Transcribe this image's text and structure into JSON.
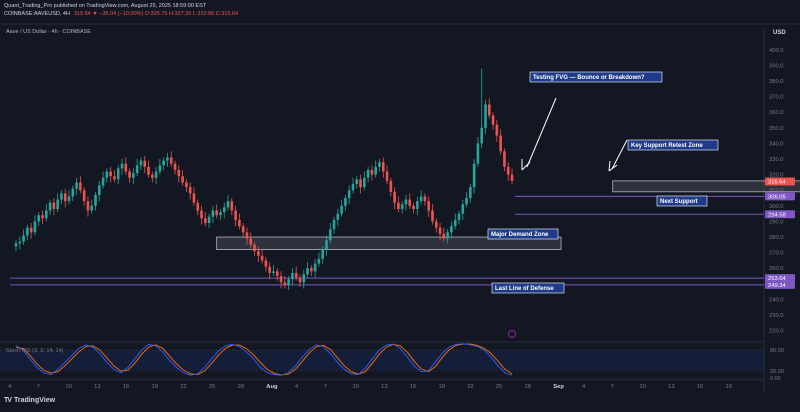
{
  "header": {
    "line1": "Quant_Trading_Pro published on TradingView.com, August 25, 2025 18:59:00 EST",
    "line2_symbol": "COINBASE:AAVEUSD, 4H",
    "line2_ohlc": "315.64 ▼ −35.04 (−10.00%) O:325.76 H:327.35 L:310.86 C:315.64"
  },
  "footer": {
    "logo": "TV",
    "brand": "TradingView"
  },
  "colors": {
    "background": "#131722",
    "up": "#26a69a",
    "down": "#ef5350",
    "level_line": "#7e57c2",
    "price_tag": "#ef5350",
    "label_bg": "#1e3a8a",
    "rsi_k": "#2962ff",
    "rsi_d": "#ff6d00"
  },
  "chart_data": {
    "type": "candlestick",
    "title": "Aave / US Dollar · 4h · COINBASE",
    "currency": "USD",
    "ylim": [
      214,
      414
    ],
    "y_ticks": [
      220,
      230,
      240,
      250,
      260,
      270,
      280,
      290,
      300,
      310,
      320,
      330,
      340,
      350,
      360,
      370,
      380,
      390,
      400
    ],
    "x_ticks": [
      "4",
      "7",
      "10",
      "13",
      "16",
      "19",
      "22",
      "25",
      "28",
      "Aug",
      "4",
      "7",
      "10",
      "13",
      "16",
      "19",
      "22",
      "25",
      "28",
      "Sep",
      "4",
      "7",
      "10",
      "13",
      "16",
      "19"
    ],
    "x_ticks_bold": [
      "Aug",
      "Sep"
    ],
    "last_price": 315.64,
    "price_tags": [
      {
        "value": "315.64",
        "color": "#ef5350"
      },
      {
        "value": "306.05",
        "color": "#7e57c2"
      },
      {
        "value": "294.58",
        "color": "#7e57c2"
      },
      {
        "value": "253.64",
        "color": "#7e57c2"
      },
      {
        "value": "249.34",
        "color": "#7e57c2"
      }
    ],
    "levels": [
      {
        "price": 306.05,
        "from_day": 17.6,
        "label": "Next Support"
      },
      {
        "price": 294.58,
        "from_day": 17.6,
        "label": ""
      },
      {
        "price": 253.64,
        "from_day": 0.0,
        "label": ""
      },
      {
        "price": 249.34,
        "from_day": 0.0,
        "label": "Last Line of Defense"
      }
    ],
    "zones": [
      {
        "name": "Key Support Retest Zone",
        "from_day": 21.0,
        "to_day": 31.0,
        "top": 316,
        "bottom": 309
      },
      {
        "name": "Major Demand Zone",
        "from_day": 7.2,
        "to_day": 19.2,
        "top": 280,
        "bottom": 272
      }
    ],
    "annotations": [
      {
        "text": "Testing FVG — Bounce or Breakdown?"
      },
      {
        "text": "Key Support Retest Zone"
      },
      {
        "text": "Next Support"
      },
      {
        "text": "Major Demand Zone"
      },
      {
        "text": "Last Line of Defense"
      }
    ],
    "candles_close": [
      276,
      277,
      281,
      286,
      283,
      290,
      294,
      292,
      297,
      302,
      298,
      304,
      308,
      303,
      306,
      311,
      315,
      310,
      303,
      297,
      300,
      307,
      313,
      318,
      322,
      319,
      317,
      324,
      327,
      322,
      318,
      321,
      326,
      329,
      325,
      320,
      318,
      322,
      326,
      329,
      331,
      327,
      323,
      319,
      315,
      312,
      308,
      302,
      297,
      292,
      289,
      293,
      297,
      294,
      296,
      299,
      303,
      297,
      291,
      287,
      283,
      279,
      275,
      271,
      268,
      265,
      261,
      257,
      258,
      255,
      251,
      249,
      253,
      257,
      254,
      251,
      256,
      260,
      258,
      263,
      266,
      272,
      278,
      285,
      291,
      295,
      300,
      305,
      310,
      314,
      317,
      312,
      318,
      323,
      320,
      325,
      328,
      322,
      316,
      309,
      302,
      298,
      301,
      304,
      300,
      298,
      303,
      306,
      303,
      297,
      290,
      286,
      282,
      279,
      283,
      287,
      291,
      295,
      301,
      305,
      312,
      327,
      340,
      350,
      365,
      358,
      352,
      345,
      335,
      325,
      320,
      316
    ],
    "rsi": {
      "name": "Stoch RSI (3, 3, 14, 14)",
      "levels": [
        "80.00",
        "20.00",
        "0.00"
      ],
      "k": [
        92,
        80,
        55,
        30,
        15,
        10,
        25,
        45,
        65,
        85,
        95,
        88,
        70,
        45,
        25,
        15,
        30,
        55,
        80,
        96,
        92,
        75,
        50,
        30,
        15,
        8,
        12,
        30,
        55,
        78,
        92,
        96,
        90,
        75,
        55,
        30,
        15,
        10,
        8,
        15,
        35,
        60,
        82,
        95,
        90,
        70,
        45,
        25,
        12,
        10,
        28,
        55,
        80,
        94,
        97,
        85,
        60,
        35,
        18,
        20,
        45,
        70,
        88,
        96,
        98,
        95,
        90,
        80,
        60,
        35,
        15,
        8
      ],
      "d": [
        88,
        84,
        65,
        40,
        22,
        14,
        18,
        35,
        55,
        75,
        90,
        92,
        80,
        58,
        35,
        20,
        22,
        42,
        68,
        88,
        95,
        85,
        62,
        40,
        22,
        12,
        10,
        20,
        42,
        66,
        85,
        94,
        94,
        84,
        66,
        44,
        24,
        13,
        9,
        11,
        25,
        48,
        72,
        90,
        93,
        82,
        58,
        35,
        18,
        11,
        18,
        42,
        68,
        88,
        96,
        92,
        74,
        48,
        26,
        18,
        32,
        58,
        80,
        93,
        97,
        97,
        93,
        85,
        70,
        48,
        25,
        12
      ]
    }
  }
}
